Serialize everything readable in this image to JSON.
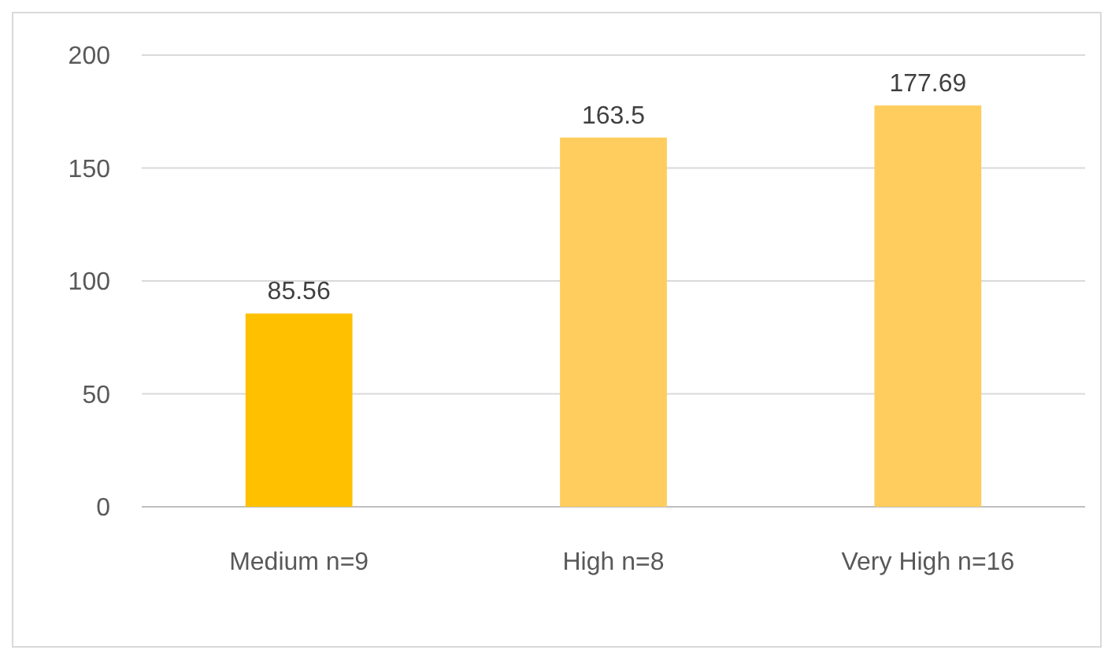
{
  "chart_data": {
    "type": "bar",
    "categories": [
      "Medium n=9",
      "High n=8",
      "Very High n=16"
    ],
    "values": [
      85.56,
      163.5,
      177.69
    ],
    "colors": [
      "#ffc000",
      "#ffcd5d",
      "#ffcd5d"
    ],
    "ylim": [
      0,
      200
    ],
    "yticks": [
      0,
      50,
      100,
      150,
      200
    ],
    "grid": "y",
    "data_labels": true
  }
}
